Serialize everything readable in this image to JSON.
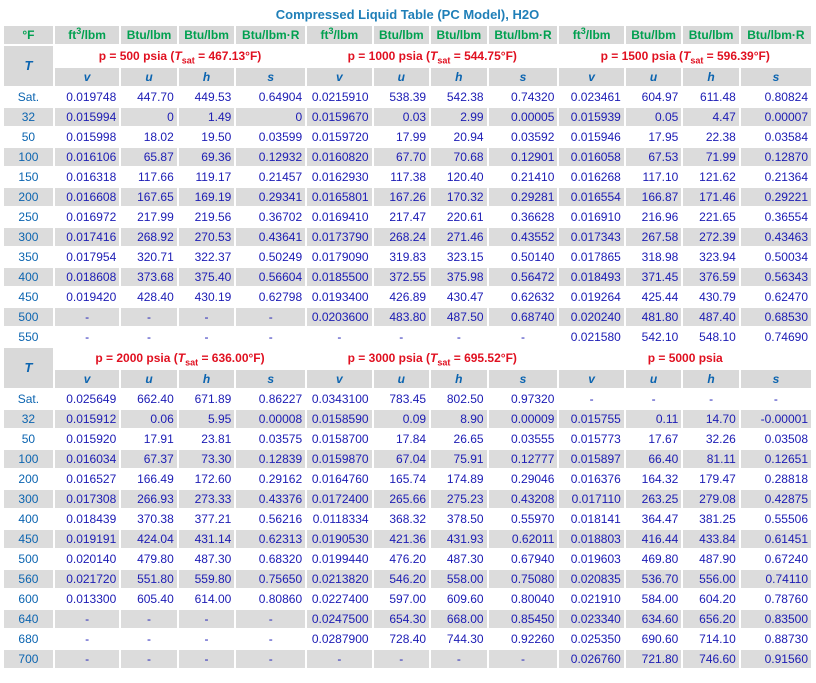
{
  "title": "Compressed Liquid Table (PC Model), H2O",
  "units": {
    "temp": "°F",
    "v_base": "ft",
    "v_sup": "3",
    "v_tail": "/lbm",
    "u": "Btu/lbm",
    "h": "Btu/lbm",
    "s": "Btu/lbm·R"
  },
  "symbols": {
    "T": "T",
    "v": "v",
    "u": "u",
    "h": "h",
    "s": "s"
  },
  "pressures": {
    "p500": {
      "pre": "p = 500 psia (",
      "T": "T",
      "sub": "sat",
      "val": " = 467.13°F)"
    },
    "p1000": {
      "pre": "p = 1000 psia (",
      "T": "T",
      "sub": "sat",
      "val": " = 544.75°F)"
    },
    "p1500": {
      "pre": "p = 1500 psia (",
      "T": "T",
      "sub": "sat",
      "val": " = 596.39°F)"
    },
    "p2000": {
      "pre": "p = 2000 psia (",
      "T": "T",
      "sub": "sat",
      "val": " = 636.00°F)"
    },
    "p3000": {
      "pre": "p = 3000 psia (",
      "T": "T",
      "sub": "sat",
      "val": " = 695.52°F)"
    },
    "p5000": {
      "label": "p = 5000 psia"
    }
  },
  "top_rows": [
    [
      "Sat.",
      "0.019748",
      "447.70",
      "449.53",
      "0.64904",
      "0.0215910",
      "538.39",
      "542.38",
      "0.74320",
      "0.023461",
      "604.97",
      "611.48",
      "0.80824"
    ],
    [
      "32",
      "0.015994",
      "0",
      "1.49",
      "0",
      "0.0159670",
      "0.03",
      "2.99",
      "0.00005",
      "0.015939",
      "0.05",
      "4.47",
      "0.00007"
    ],
    [
      "50",
      "0.015998",
      "18.02",
      "19.50",
      "0.03599",
      "0.0159720",
      "17.99",
      "20.94",
      "0.03592",
      "0.015946",
      "17.95",
      "22.38",
      "0.03584"
    ],
    [
      "100",
      "0.016106",
      "65.87",
      "69.36",
      "0.12932",
      "0.0160820",
      "67.70",
      "70.68",
      "0.12901",
      "0.016058",
      "67.53",
      "71.99",
      "0.12870"
    ],
    [
      "150",
      "0.016318",
      "117.66",
      "119.17",
      "0.21457",
      "0.0162930",
      "117.38",
      "120.40",
      "0.21410",
      "0.016268",
      "117.10",
      "121.62",
      "0.21364"
    ],
    [
      "200",
      "0.016608",
      "167.65",
      "169.19",
      "0.29341",
      "0.0165801",
      "167.26",
      "170.32",
      "0.29281",
      "0.016554",
      "166.87",
      "171.46",
      "0.29221"
    ],
    [
      "250",
      "0.016972",
      "217.99",
      "219.56",
      "0.36702",
      "0.0169410",
      "217.47",
      "220.61",
      "0.36628",
      "0.016910",
      "216.96",
      "221.65",
      "0.36554"
    ],
    [
      "300",
      "0.017416",
      "268.92",
      "270.53",
      "0.43641",
      "0.0173790",
      "268.24",
      "271.46",
      "0.43552",
      "0.017343",
      "267.58",
      "272.39",
      "0.43463"
    ],
    [
      "350",
      "0.017954",
      "320.71",
      "322.37",
      "0.50249",
      "0.0179090",
      "319.83",
      "323.15",
      "0.50140",
      "0.017865",
      "318.98",
      "323.94",
      "0.50034"
    ],
    [
      "400",
      "0.018608",
      "373.68",
      "375.40",
      "0.56604",
      "0.0185500",
      "372.55",
      "375.98",
      "0.56472",
      "0.018493",
      "371.45",
      "376.59",
      "0.56343"
    ],
    [
      "450",
      "0.019420",
      "428.40",
      "430.19",
      "0.62798",
      "0.0193400",
      "426.89",
      "430.47",
      "0.62632",
      "0.019264",
      "425.44",
      "430.79",
      "0.62470"
    ],
    [
      "500",
      "-",
      "-",
      "-",
      "-",
      "0.0203600",
      "483.80",
      "487.50",
      "0.68740",
      "0.020240",
      "481.80",
      "487.40",
      "0.68530"
    ],
    [
      "550",
      "-",
      "-",
      "-",
      "-",
      "-",
      "-",
      "-",
      "-",
      "0.021580",
      "542.10",
      "548.10",
      "0.74690"
    ]
  ],
  "bottom_rows": [
    [
      "Sat.",
      "0.025649",
      "662.40",
      "671.89",
      "0.86227",
      "0.0343100",
      "783.45",
      "802.50",
      "0.97320",
      "-",
      "-",
      "-",
      "-"
    ],
    [
      "32",
      "0.015912",
      "0.06",
      "5.95",
      "0.00008",
      "0.0158590",
      "0.09",
      "8.90",
      "0.00009",
      "0.015755",
      "0.11",
      "14.70",
      "-0.00001"
    ],
    [
      "50",
      "0.015920",
      "17.91",
      "23.81",
      "0.03575",
      "0.0158700",
      "17.84",
      "26.65",
      "0.03555",
      "0.015773",
      "17.67",
      "32.26",
      "0.03508"
    ],
    [
      "100",
      "0.016034",
      "67.37",
      "73.30",
      "0.12839",
      "0.0159870",
      "67.04",
      "75.91",
      "0.12777",
      "0.015897",
      "66.40",
      "81.11",
      "0.12651"
    ],
    [
      "200",
      "0.016527",
      "166.49",
      "172.60",
      "0.29162",
      "0.0164760",
      "165.74",
      "174.89",
      "0.29046",
      "0.016376",
      "164.32",
      "179.47",
      "0.28818"
    ],
    [
      "300",
      "0.017308",
      "266.93",
      "273.33",
      "0.43376",
      "0.0172400",
      "265.66",
      "275.23",
      "0.43208",
      "0.017110",
      "263.25",
      "279.08",
      "0.42875"
    ],
    [
      "400",
      "0.018439",
      "370.38",
      "377.21",
      "0.56216",
      "0.0118334",
      "368.32",
      "378.50",
      "0.55970",
      "0.018141",
      "364.47",
      "381.25",
      "0.55506"
    ],
    [
      "450",
      "0.019191",
      "424.04",
      "431.14",
      "0.62313",
      "0.0190530",
      "421.36",
      "431.93",
      "0.62011",
      "0.018803",
      "416.44",
      "433.84",
      "0.61451"
    ],
    [
      "500",
      "0.020140",
      "479.80",
      "487.30",
      "0.68320",
      "0.0199440",
      "476.20",
      "487.30",
      "0.67940",
      "0.019603",
      "469.80",
      "487.90",
      "0.67240"
    ],
    [
      "560",
      "0.021720",
      "551.80",
      "559.80",
      "0.75650",
      "0.0213820",
      "546.20",
      "558.00",
      "0.75080",
      "0.020835",
      "536.70",
      "556.00",
      "0.74110"
    ],
    [
      "600",
      "0.013300",
      "605.40",
      "614.00",
      "0.80860",
      "0.0227400",
      "597.00",
      "609.60",
      "0.80040",
      "0.021910",
      "584.00",
      "604.20",
      "0.78760"
    ],
    [
      "640",
      "-",
      "-",
      "-",
      "-",
      "0.0247500",
      "654.30",
      "668.00",
      "0.85450",
      "0.023340",
      "634.60",
      "656.20",
      "0.83500"
    ],
    [
      "680",
      "-",
      "-",
      "-",
      "-",
      "0.0287900",
      "728.40",
      "744.30",
      "0.92260",
      "0.025350",
      "690.60",
      "714.10",
      "0.88730"
    ],
    [
      "700",
      "-",
      "-",
      "-",
      "-",
      "-",
      "-",
      "-",
      "-",
      "0.026760",
      "721.80",
      "746.60",
      "0.91560"
    ]
  ]
}
